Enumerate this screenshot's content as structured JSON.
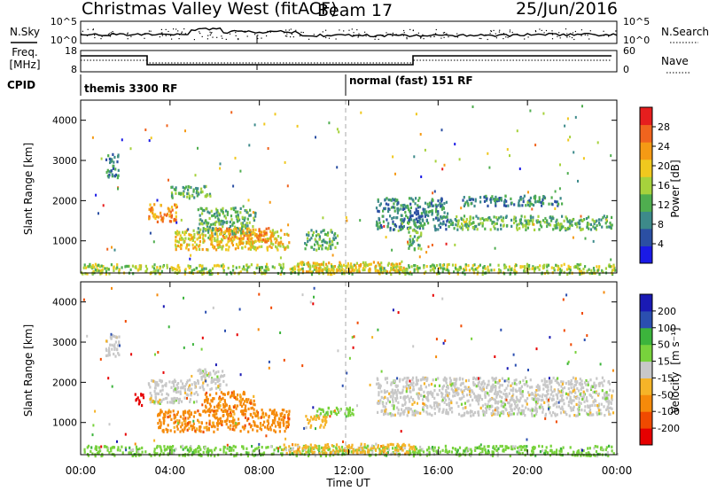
{
  "header": {
    "station": "Christmas Valley West (fitACF)",
    "beam": "Beam 17",
    "date": "25/Jun/2016"
  },
  "sky_panel": {
    "left_label": "N.Sky",
    "right_label": "N.Search",
    "left_ticks": [
      "10^5",
      "10^0"
    ],
    "right_ticks": [
      "10^5",
      "10^0"
    ]
  },
  "freq_panel": {
    "left_label": "Freq.",
    "left_unit": "[MHz]",
    "right_label": "Nave",
    "left_ticks": [
      "18",
      "8"
    ],
    "right_ticks": [
      "60",
      "0"
    ]
  },
  "cpid": {
    "label": "CPID",
    "modes": [
      {
        "name": "themis 3300 RF"
      },
      {
        "name": "normal (fast) 151 RF"
      }
    ]
  },
  "axes": {
    "y_label": "Slant Range [km]",
    "y_ticks": [
      "1000",
      "2000",
      "3000",
      "4000"
    ],
    "x_label": "Time UT",
    "x_ticks": [
      "00:00",
      "04:00",
      "08:00",
      "12:00",
      "16:00",
      "20:00",
      "00:00"
    ]
  },
  "colorbars": {
    "power": {
      "label": "Power [dB]",
      "ticks": [
        "4",
        "8",
        "12",
        "16",
        "20",
        "24",
        "28"
      ]
    },
    "velocity": {
      "label": "Velocity",
      "unit": "[m s⁻¹]",
      "ticks": [
        "200",
        "100",
        "50",
        "15",
        "-15",
        "-50",
        "-100",
        "-200"
      ]
    }
  },
  "chart_data": [
    {
      "type": "heatmap",
      "title": "Power",
      "x_unit": "hours UT",
      "y_unit": "km",
      "xlim": [
        0,
        24
      ],
      "ylim": [
        200,
        4500
      ],
      "colorbar_range": [
        0,
        32
      ],
      "palette": [
        "#1a1ae6",
        "#2b4fa3",
        "#3d8a8a",
        "#4fae4f",
        "#a6d23c",
        "#f0c81e",
        "#f59a14",
        "#f0641e",
        "#e61e1e"
      ],
      "regions": [
        {
          "x": [
            1.1,
            1.7
          ],
          "y": [
            2600,
            3200
          ],
          "level": 8
        },
        {
          "x": [
            3.0,
            4.3
          ],
          "y": [
            1500,
            1950
          ],
          "level": 22
        },
        {
          "x": [
            4.0,
            5.8
          ],
          "y": [
            2100,
            2400
          ],
          "level": 13
        },
        {
          "x": [
            4.2,
            9.3
          ],
          "y": [
            800,
            1300
          ],
          "level": 18
        },
        {
          "x": [
            5.2,
            7.8
          ],
          "y": [
            1200,
            1850
          ],
          "level": 11
        },
        {
          "x": [
            5.8,
            8.4
          ],
          "y": [
            1000,
            1350
          ],
          "level": 24
        },
        {
          "x": [
            10.0,
            11.5
          ],
          "y": [
            800,
            1300
          ],
          "level": 12
        },
        {
          "x": [
            13.2,
            16.4
          ],
          "y": [
            1300,
            2100
          ],
          "level": 9
        },
        {
          "x": [
            14.6,
            15.2
          ],
          "y": [
            800,
            1500
          ],
          "level": 13
        },
        {
          "x": [
            16.4,
            23.8
          ],
          "y": [
            1300,
            1650
          ],
          "level": 10
        },
        {
          "x": [
            17.0,
            21.5
          ],
          "y": [
            1900,
            2150
          ],
          "level": 8
        },
        {
          "x": [
            0.0,
            24.0
          ],
          "y": [
            200,
            450
          ],
          "level": 14
        },
        {
          "x": [
            9.5,
            14.5
          ],
          "y": [
            250,
            500
          ],
          "level": 20
        }
      ]
    },
    {
      "type": "heatmap",
      "title": "Velocity",
      "x_unit": "hours UT",
      "y_unit": "km",
      "xlim": [
        0,
        24
      ],
      "ylim": [
        200,
        4500
      ],
      "colorbar_range": [
        -250,
        250
      ],
      "palette": [
        "#e60000",
        "#f04a00",
        "#f58a0a",
        "#f5b428",
        "#c8c8c8",
        "#78d23c",
        "#3cb43c",
        "#2b4fb0",
        "#1a1ab4"
      ],
      "regions": [
        {
          "x": [
            1.1,
            1.7
          ],
          "y": [
            2600,
            3200
          ],
          "velocity": 0
        },
        {
          "x": [
            2.4,
            2.8
          ],
          "y": [
            1450,
            1750
          ],
          "velocity": -200
        },
        {
          "x": [
            3.0,
            5.2
          ],
          "y": [
            1500,
            2100
          ],
          "velocity": 0
        },
        {
          "x": [
            5.2,
            6.5
          ],
          "y": [
            1850,
            2350
          ],
          "velocity": 5
        },
        {
          "x": [
            3.4,
            9.3
          ],
          "y": [
            800,
            1350
          ],
          "velocity": -60
        },
        {
          "x": [
            5.5,
            7.8
          ],
          "y": [
            1300,
            1800
          ],
          "velocity": -80
        },
        {
          "x": [
            10.0,
            11.0
          ],
          "y": [
            900,
            1200
          ],
          "velocity": -40
        },
        {
          "x": [
            10.5,
            12.2
          ],
          "y": [
            1200,
            1400
          ],
          "velocity": 30
        },
        {
          "x": [
            13.2,
            23.8
          ],
          "y": [
            1200,
            2150
          ],
          "velocity": 0
        },
        {
          "x": [
            0.0,
            24.0
          ],
          "y": [
            200,
            450
          ],
          "velocity": 25
        },
        {
          "x": [
            9.0,
            15.0
          ],
          "y": [
            250,
            500
          ],
          "velocity": -40
        }
      ]
    }
  ]
}
